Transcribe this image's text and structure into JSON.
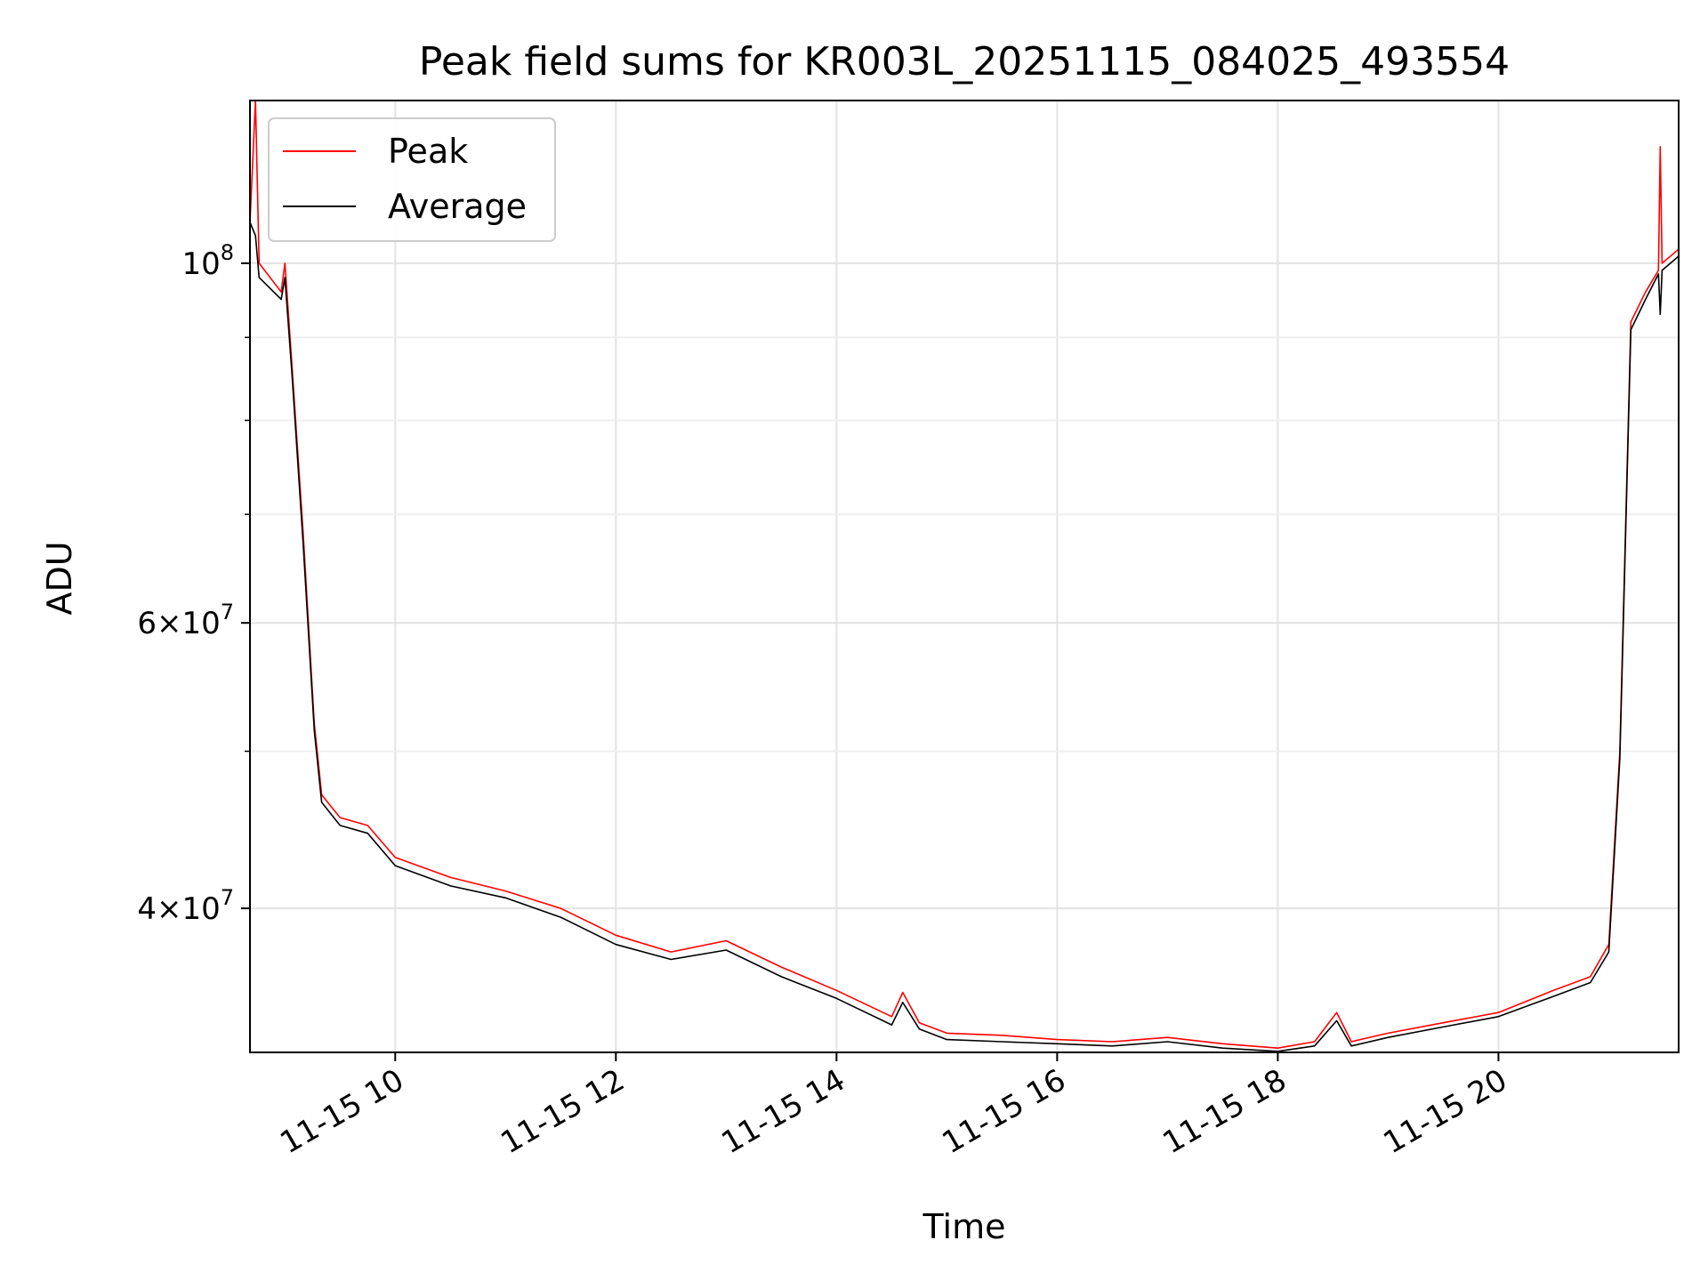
{
  "chart_data": {
    "type": "line",
    "title": "Peak field sums for KR003L_20251115_084025_493554",
    "xlabel": "Time",
    "ylabel": "ADU",
    "x_range": [
      "2025-11-15 08:41",
      "2025-11-15 21:38"
    ],
    "y_scale": "log",
    "ylim": [
      32600000,
      126000000
    ],
    "grid": true,
    "legend_position": "top-left",
    "x_tick_labels": [
      "11-15 10",
      "11-15 12",
      "11-15 14",
      "11-15 16",
      "11-15 18",
      "11-15 20"
    ],
    "x_ticks": [
      "2025-11-15 10:00",
      "2025-11-15 12:00",
      "2025-11-15 14:00",
      "2025-11-15 16:00",
      "2025-11-15 18:00",
      "2025-11-15 20:00"
    ],
    "y_ticks": [
      {
        "value": 100000000,
        "mantissa": "",
        "exponent": "8"
      },
      {
        "value": 60000000,
        "mantissa": "6",
        "exponent": "7"
      },
      {
        "value": 40000000,
        "mantissa": "4",
        "exponent": "7"
      }
    ],
    "series": [
      {
        "name": "Peak",
        "color": "#ff0000",
        "points": [
          [
            "2025-11-15 08:41",
            106000000
          ],
          [
            "2025-11-15 08:44",
            126000000
          ],
          [
            "2025-11-15 08:46",
            100000000
          ],
          [
            "2025-11-15 08:58",
            96000000
          ],
          [
            "2025-11-15 09:00",
            100000000
          ],
          [
            "2025-11-15 09:04",
            86000000
          ],
          [
            "2025-11-15 09:10",
            68000000
          ],
          [
            "2025-11-15 09:16",
            52000000
          ],
          [
            "2025-11-15 09:20",
            47000000
          ],
          [
            "2025-11-15 09:30",
            45500000
          ],
          [
            "2025-11-15 09:45",
            45000000
          ],
          [
            "2025-11-15 10:00",
            43000000
          ],
          [
            "2025-11-15 10:30",
            41800000
          ],
          [
            "2025-11-15 11:00",
            41000000
          ],
          [
            "2025-11-15 11:30",
            40000000
          ],
          [
            "2025-11-15 12:00",
            38500000
          ],
          [
            "2025-11-15 12:30",
            37600000
          ],
          [
            "2025-11-15 13:00",
            38200000
          ],
          [
            "2025-11-15 13:30",
            36800000
          ],
          [
            "2025-11-15 14:00",
            35600000
          ],
          [
            "2025-11-15 14:30",
            34300000
          ],
          [
            "2025-11-15 14:36",
            35500000
          ],
          [
            "2025-11-15 14:45",
            34000000
          ],
          [
            "2025-11-15 15:00",
            33500000
          ],
          [
            "2025-11-15 15:30",
            33400000
          ],
          [
            "2025-11-15 16:00",
            33200000
          ],
          [
            "2025-11-15 16:30",
            33100000
          ],
          [
            "2025-11-15 17:00",
            33300000
          ],
          [
            "2025-11-15 17:30",
            33000000
          ],
          [
            "2025-11-15 18:00",
            32800000
          ],
          [
            "2025-11-15 18:20",
            33100000
          ],
          [
            "2025-11-15 18:32",
            34500000
          ],
          [
            "2025-11-15 18:40",
            33100000
          ],
          [
            "2025-11-15 19:00",
            33500000
          ],
          [
            "2025-11-15 19:30",
            34000000
          ],
          [
            "2025-11-15 20:00",
            34500000
          ],
          [
            "2025-11-15 20:30",
            35600000
          ],
          [
            "2025-11-15 20:50",
            36300000
          ],
          [
            "2025-11-15 21:00",
            38000000
          ],
          [
            "2025-11-15 21:06",
            50000000
          ],
          [
            "2025-11-15 21:12",
            92000000
          ],
          [
            "2025-11-15 21:20",
            96000000
          ],
          [
            "2025-11-15 21:27",
            99000000
          ],
          [
            "2025-11-15 21:28",
            118000000
          ],
          [
            "2025-11-15 21:29",
            100000000
          ],
          [
            "2025-11-15 21:38",
            102000000
          ]
        ]
      },
      {
        "name": "Average",
        "color": "#000000",
        "points": [
          [
            "2025-11-15 08:41",
            106000000
          ],
          [
            "2025-11-15 08:44",
            104000000
          ],
          [
            "2025-11-15 08:46",
            98000000
          ],
          [
            "2025-11-15 08:58",
            95000000
          ],
          [
            "2025-11-15 09:00",
            98000000
          ],
          [
            "2025-11-15 09:04",
            85000000
          ],
          [
            "2025-11-15 09:10",
            67000000
          ],
          [
            "2025-11-15 09:16",
            51500000
          ],
          [
            "2025-11-15 09:20",
            46500000
          ],
          [
            "2025-11-15 09:30",
            45000000
          ],
          [
            "2025-11-15 09:45",
            44500000
          ],
          [
            "2025-11-15 10:00",
            42500000
          ],
          [
            "2025-11-15 10:30",
            41300000
          ],
          [
            "2025-11-15 11:00",
            40600000
          ],
          [
            "2025-11-15 11:30",
            39500000
          ],
          [
            "2025-11-15 12:00",
            38000000
          ],
          [
            "2025-11-15 12:30",
            37200000
          ],
          [
            "2025-11-15 13:00",
            37700000
          ],
          [
            "2025-11-15 13:30",
            36300000
          ],
          [
            "2025-11-15 14:00",
            35200000
          ],
          [
            "2025-11-15 14:30",
            33900000
          ],
          [
            "2025-11-15 14:36",
            35000000
          ],
          [
            "2025-11-15 14:45",
            33700000
          ],
          [
            "2025-11-15 15:00",
            33200000
          ],
          [
            "2025-11-15 15:30",
            33100000
          ],
          [
            "2025-11-15 16:00",
            33000000
          ],
          [
            "2025-11-15 16:30",
            32900000
          ],
          [
            "2025-11-15 17:00",
            33100000
          ],
          [
            "2025-11-15 17:30",
            32800000
          ],
          [
            "2025-11-15 18:00",
            32650000
          ],
          [
            "2025-11-15 18:20",
            32900000
          ],
          [
            "2025-11-15 18:32",
            34100000
          ],
          [
            "2025-11-15 18:40",
            32900000
          ],
          [
            "2025-11-15 19:00",
            33300000
          ],
          [
            "2025-11-15 19:30",
            33800000
          ],
          [
            "2025-11-15 20:00",
            34300000
          ],
          [
            "2025-11-15 20:30",
            35300000
          ],
          [
            "2025-11-15 20:50",
            36000000
          ],
          [
            "2025-11-15 21:00",
            37600000
          ],
          [
            "2025-11-15 21:06",
            49500000
          ],
          [
            "2025-11-15 21:12",
            91000000
          ],
          [
            "2025-11-15 21:20",
            95000000
          ],
          [
            "2025-11-15 21:27",
            98500000
          ],
          [
            "2025-11-15 21:28",
            93000000
          ],
          [
            "2025-11-15 21:29",
            99000000
          ],
          [
            "2025-11-15 21:38",
            101000000
          ]
        ]
      }
    ]
  }
}
